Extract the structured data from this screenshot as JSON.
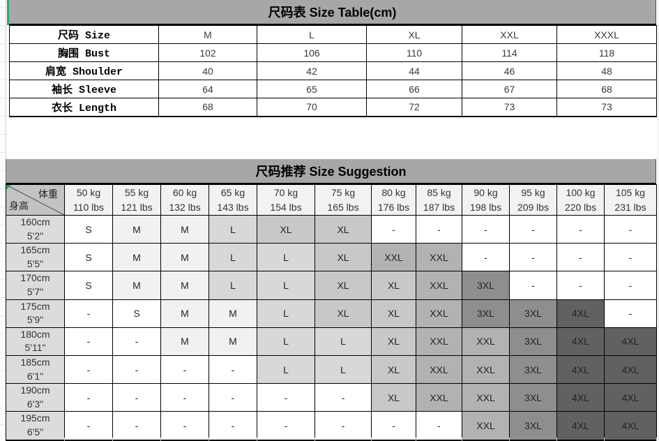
{
  "size_table": {
    "title": "尺码表 Size Table(cm)",
    "rows": [
      {
        "label": "尺码 Size",
        "values": [
          "M",
          "L",
          "XL",
          "XXL",
          "XXXL"
        ]
      },
      {
        "label": "胸围 Bust",
        "values": [
          "102",
          "106",
          "110",
          "114",
          "118"
        ]
      },
      {
        "label": "肩宽 Shoulder",
        "values": [
          "40",
          "42",
          "44",
          "46",
          "48"
        ]
      },
      {
        "label": "袖长 Sleeve",
        "values": [
          "64",
          "65",
          "66",
          "67",
          "68"
        ]
      },
      {
        "label": "衣长 Length",
        "values": [
          "68",
          "70",
          "72",
          "73",
          "73"
        ]
      }
    ]
  },
  "suggestion_table": {
    "title": "尺码推荐 Size Suggestion",
    "corner": {
      "top_right": "体重",
      "bottom_left": "身高"
    },
    "weight_headers": [
      {
        "kg": "50 kg",
        "lbs": "110 lbs"
      },
      {
        "kg": "55 kg",
        "lbs": "121 lbs"
      },
      {
        "kg": "60 kg",
        "lbs": "132 lbs"
      },
      {
        "kg": "65 kg",
        "lbs": "143 lbs"
      },
      {
        "kg": "70 kg",
        "lbs": "154 lbs"
      },
      {
        "kg": "75 kg",
        "lbs": "165 lbs"
      },
      {
        "kg": "80 kg",
        "lbs": "176 lbs"
      },
      {
        "kg": "85 kg",
        "lbs": "187 lbs"
      },
      {
        "kg": "90 kg",
        "lbs": "198 lbs"
      },
      {
        "kg": "95 kg",
        "lbs": "209 lbs"
      },
      {
        "kg": "100 kg",
        "lbs": "220 lbs"
      },
      {
        "kg": "105 kg",
        "lbs": "231 lbs"
      }
    ],
    "height_headers": [
      {
        "cm": "160cm",
        "imperial": "5'2\""
      },
      {
        "cm": "165cm",
        "imperial": "5'5\""
      },
      {
        "cm": "170cm",
        "imperial": "5'7\""
      },
      {
        "cm": "175cm",
        "imperial": "5'9\""
      },
      {
        "cm": "180cm",
        "imperial": "5'11\""
      },
      {
        "cm": "185cm",
        "imperial": "6'1\""
      },
      {
        "cm": "190cm",
        "imperial": "6'3\""
      },
      {
        "cm": "195cm",
        "imperial": "6'5\""
      }
    ],
    "cells": [
      [
        "S",
        "M",
        "M",
        "L",
        "XL",
        "XL",
        "-",
        "-",
        "-",
        "-",
        "-",
        "-"
      ],
      [
        "S",
        "M",
        "M",
        "L",
        "L",
        "XL",
        "XXL",
        "XXL",
        "-",
        "-",
        "-",
        "-"
      ],
      [
        "S",
        "M",
        "M",
        "L",
        "L",
        "XL",
        "XL",
        "XXL",
        "3XL",
        "-",
        "-",
        "-"
      ],
      [
        "-",
        "S",
        "M",
        "M",
        "L",
        "XL",
        "XL",
        "XXL",
        "3XL",
        "3XL",
        "4XL",
        "-"
      ],
      [
        "-",
        "-",
        "M",
        "M",
        "L",
        "L",
        "XL",
        "XXL",
        "XXL",
        "3XL",
        "4XL",
        "4XL"
      ],
      [
        "-",
        "-",
        "-",
        "-",
        "L",
        "L",
        "XL",
        "XXL",
        "XXL",
        "3XL",
        "4XL",
        "4XL"
      ],
      [
        "-",
        "-",
        "-",
        "-",
        "-",
        "-",
        "XL",
        "XXL",
        "XXL",
        "3XL",
        "4XL",
        "4XL"
      ],
      [
        "-",
        "-",
        "-",
        "-",
        "-",
        "-",
        "-",
        "-",
        "XXL",
        "3XL",
        "4XL",
        "4XL"
      ]
    ],
    "size_colors": {
      "S": "#ffffff",
      "M": "#f1f1f1",
      "L": "#d8d8d8",
      "XL": "#c8c8c8",
      "XXL": "#b2b2b2",
      "3XL": "#8e8e8e",
      "4XL": "#616161",
      "-": "#ffffff"
    }
  },
  "theme": {
    "banner_bg": "#a7a7a7",
    "col_header_bg": "#f2f2f2",
    "row_header_bg": "#dcdcdc",
    "corner_bg": "#c3c3c3",
    "selection_green": "#2fa566"
  }
}
